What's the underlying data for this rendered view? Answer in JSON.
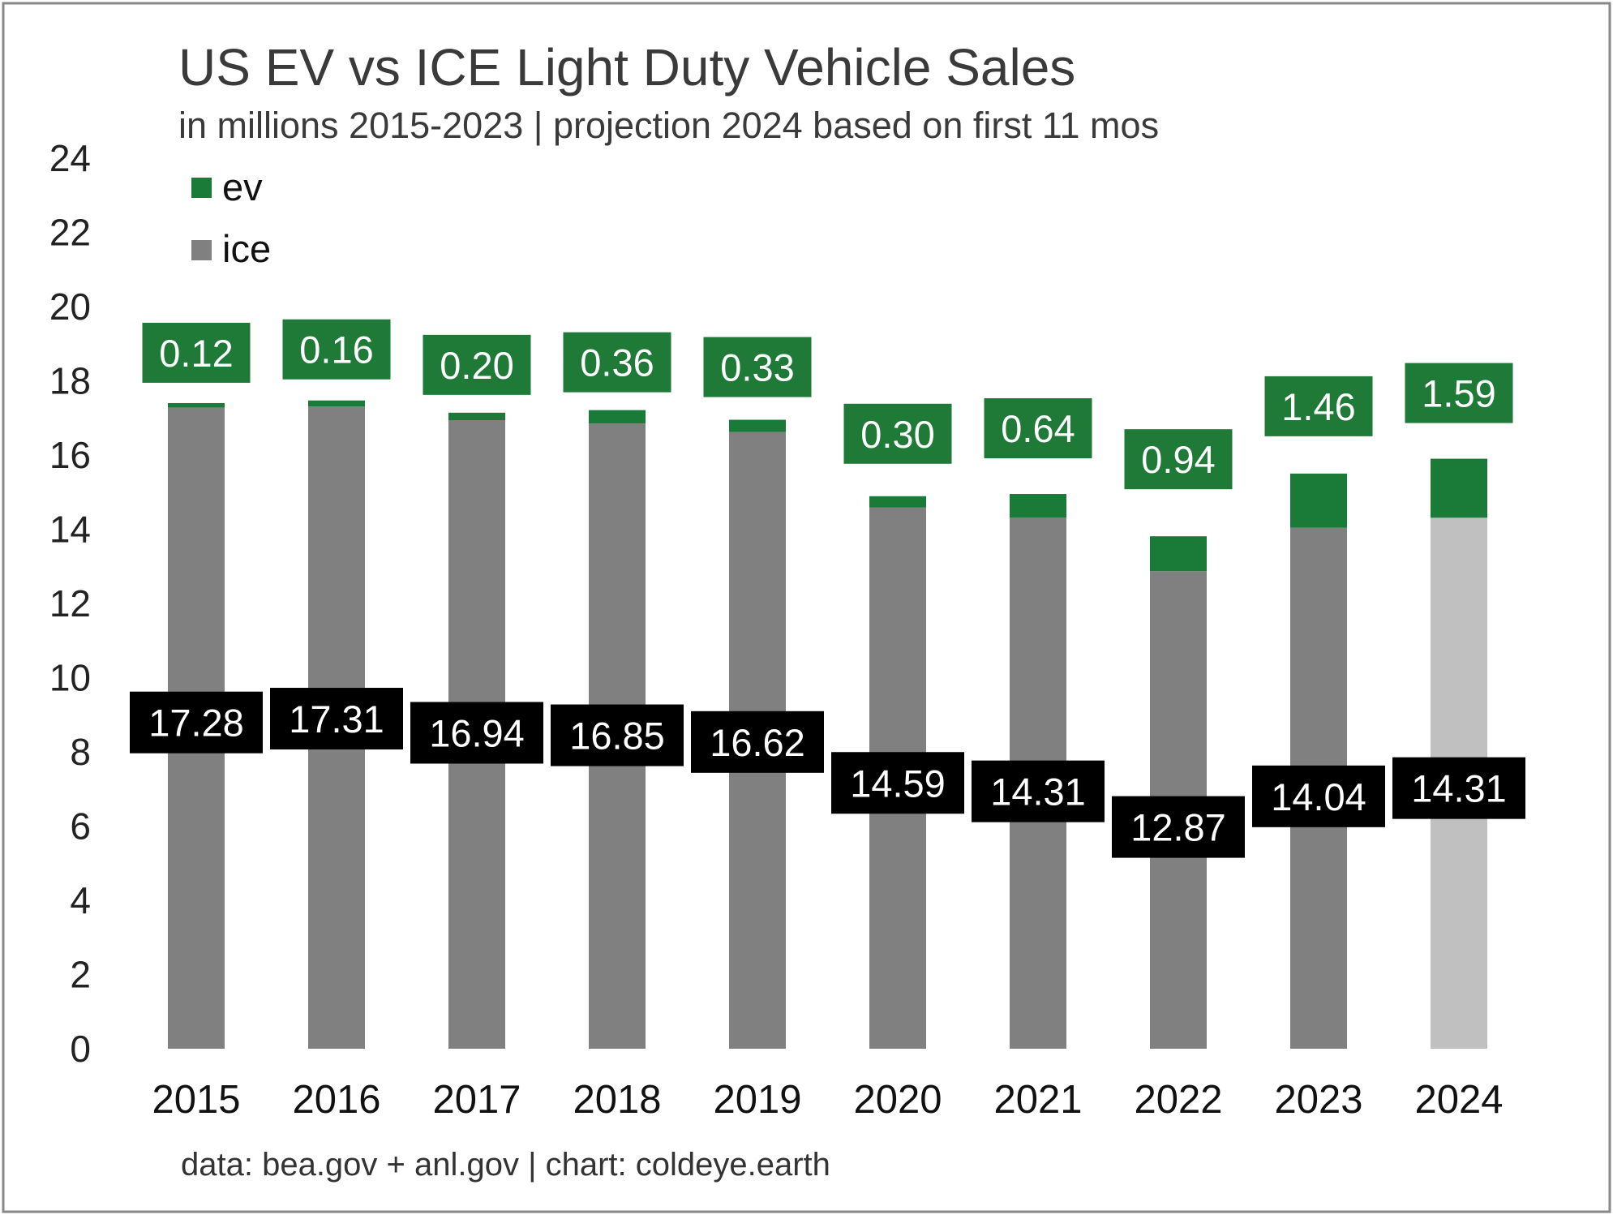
{
  "colors": {
    "ev": "#1a7a38",
    "ice": "#808080",
    "ice_projection": "#c0c0c0",
    "ice_label_bg": "#000000",
    "ev_label_bg": "#1f7a38",
    "frame": "#888888"
  },
  "chart_data": {
    "type": "bar",
    "stacked": true,
    "title": "US EV vs ICE Light Duty Vehicle Sales",
    "subtitle": "in millions 2015-2023 | projection 2024 based on first 11 mos",
    "source": "data: bea.gov + anl.gov | chart: coldeye.earth",
    "categories": [
      "2015",
      "2016",
      "2017",
      "2018",
      "2019",
      "2020",
      "2021",
      "2022",
      "2023",
      "2024"
    ],
    "series": [
      {
        "name": "ice",
        "values": [
          17.28,
          17.31,
          16.94,
          16.85,
          16.62,
          14.59,
          14.31,
          12.87,
          14.04,
          14.31
        ],
        "labels": [
          "17.28",
          "17.31",
          "16.94",
          "16.85",
          "16.62",
          "14.59",
          "14.31",
          "12.87",
          "14.04",
          "14.31"
        ]
      },
      {
        "name": "ev",
        "values": [
          0.12,
          0.16,
          0.2,
          0.36,
          0.33,
          0.3,
          0.64,
          0.94,
          1.46,
          1.59
        ],
        "labels": [
          "0.12",
          "0.16",
          "0.20",
          "0.36",
          "0.33",
          "0.30",
          "0.64",
          "0.94",
          "1.46",
          "1.59"
        ]
      }
    ],
    "projection_category": "2024",
    "ylim": [
      0,
      24
    ],
    "yticks": [
      0,
      2,
      4,
      6,
      8,
      10,
      12,
      14,
      16,
      18,
      20,
      22,
      24
    ],
    "xlabel": "",
    "ylabel": "",
    "grid": false,
    "legend_position": "top-left"
  }
}
